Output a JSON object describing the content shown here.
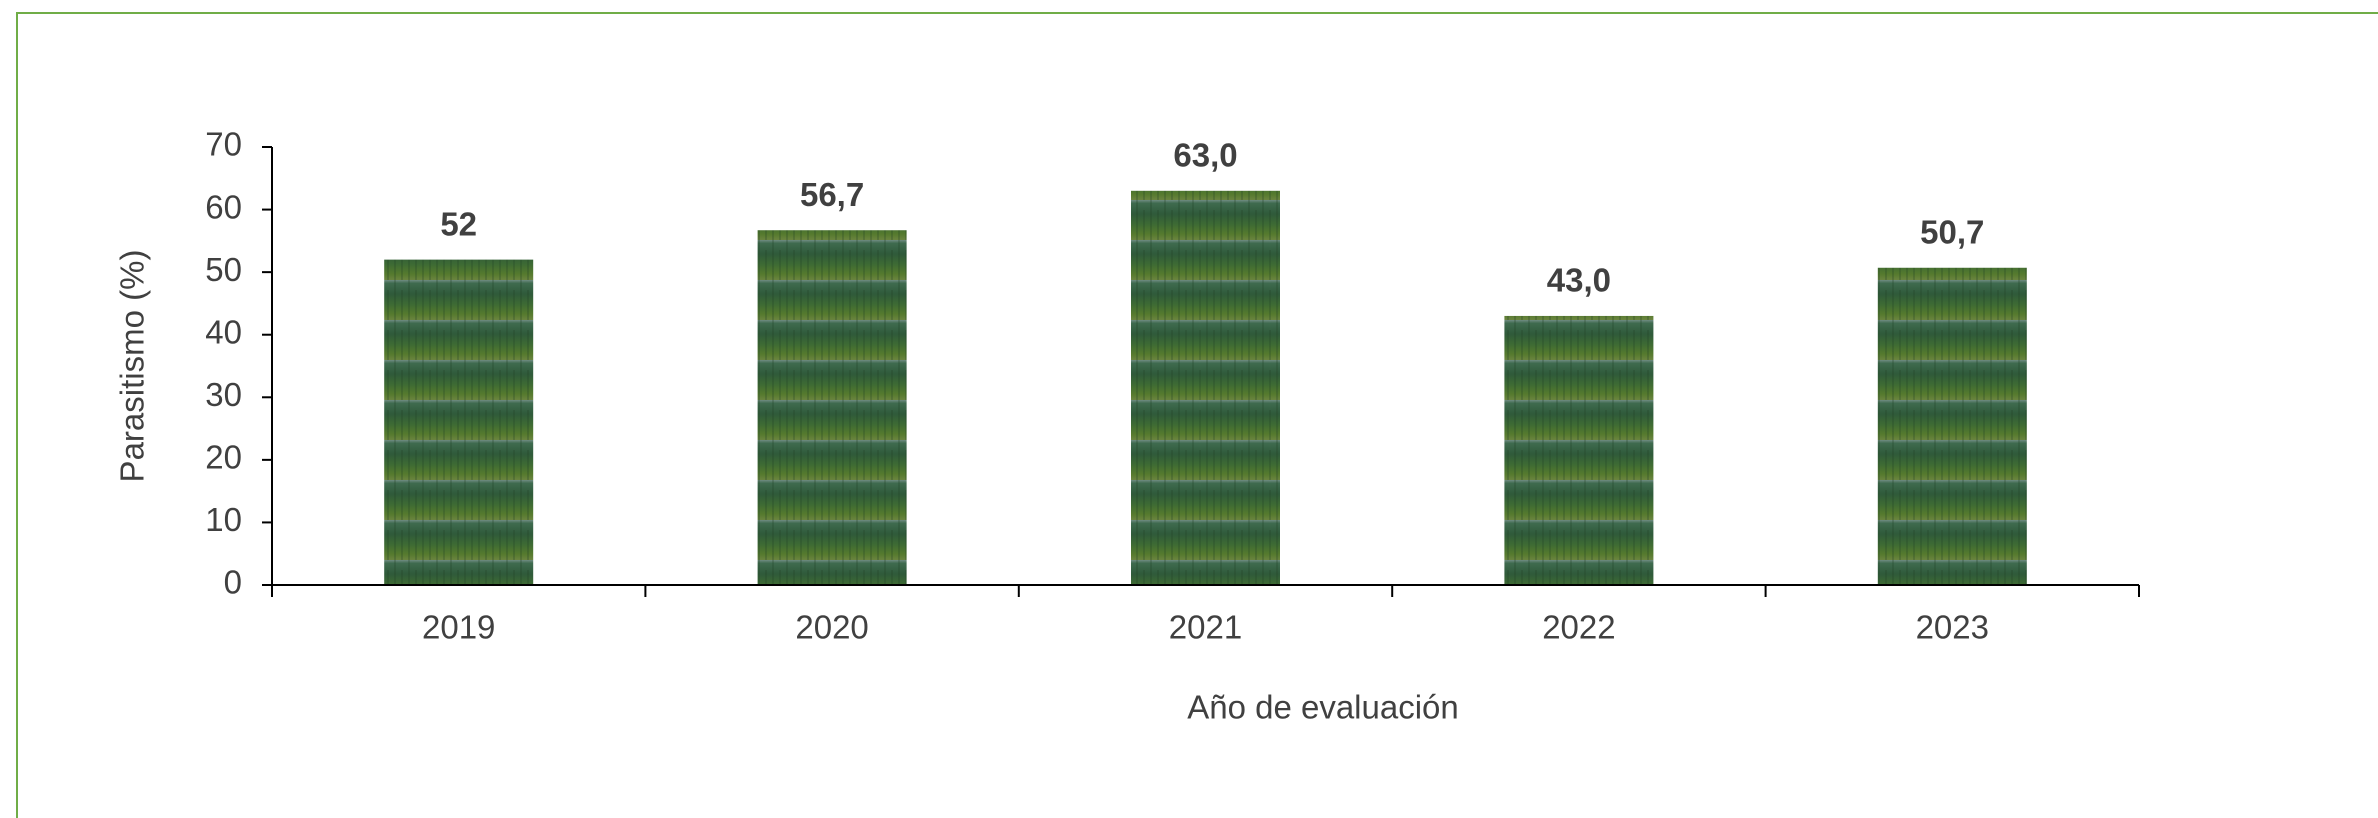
{
  "chart_data": {
    "type": "bar",
    "categories": [
      "2019",
      "2020",
      "2021",
      "2022",
      "2023"
    ],
    "values": [
      52,
      56.7,
      63.0,
      43.0,
      50.7
    ],
    "value_labels": [
      "52",
      "56,7",
      "63,0",
      "43,0",
      "50,7"
    ],
    "ylim": [
      0,
      70
    ],
    "yticks": [
      0,
      10,
      20,
      30,
      40,
      50,
      60,
      70
    ],
    "y_label": "Parasitismo (%)",
    "x_label": "Año de evaluación",
    "grid": false
  }
}
